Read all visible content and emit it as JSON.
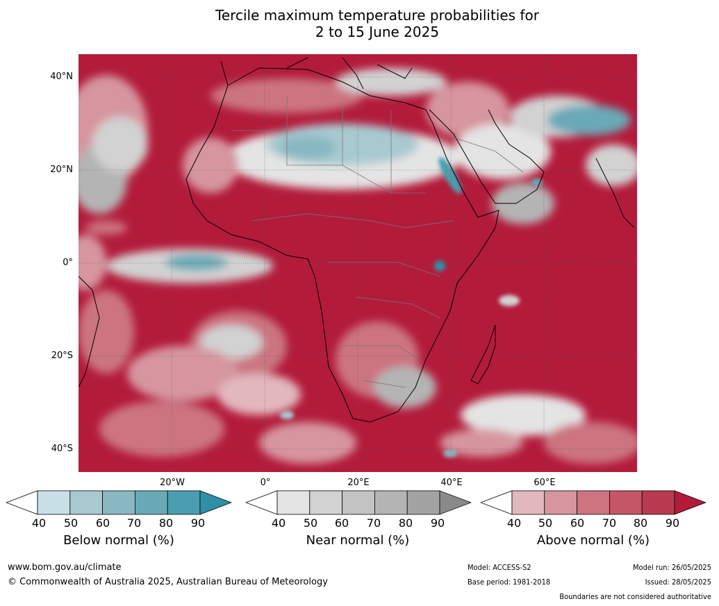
{
  "title": {
    "line1": "Tercile maximum temperature probabilities for",
    "line2": "2 to 15 June 2025"
  },
  "map": {
    "lat_labels": [
      "40°N",
      "20°N",
      "0°",
      "20°S",
      "40°S"
    ],
    "lon_labels": [
      "20°W",
      "0°",
      "20°E",
      "40°E",
      "60°E"
    ],
    "colors": {
      "below": [
        "#ffffff",
        "#c9e0e6",
        "#a8c9d0",
        "#89b8c2",
        "#6aa9b7",
        "#4a9eaf",
        "#2f8fa6"
      ],
      "near": [
        "#ffffff",
        "#e4e4e4",
        "#d2d2d2",
        "#c3c3c3",
        "#b4b4b4",
        "#a3a3a3",
        "#8a8a8a"
      ],
      "above": [
        "#ffffff",
        "#e2b7bd",
        "#d6959f",
        "#cc7581",
        "#c45668",
        "#b93a50",
        "#b31b3b"
      ]
    }
  },
  "colorbars": [
    {
      "label": "Below normal (%)",
      "ticks": [
        "40",
        "50",
        "60",
        "70",
        "80",
        "90"
      ]
    },
    {
      "label": "Near normal (%)",
      "ticks": [
        "40",
        "50",
        "60",
        "70",
        "80",
        "90"
      ]
    },
    {
      "label": "Above normal (%)",
      "ticks": [
        "40",
        "50",
        "60",
        "70",
        "80",
        "90"
      ]
    }
  ],
  "footer": {
    "website": "www.bom.gov.au/climate",
    "copyright": "© Commonwealth of Australia 2025, Australian Bureau of Meteorology",
    "model": "Model: ACCESS-S2",
    "base_period": "Base period: 1981-2018",
    "model_run": "Model run: 26/05/2025",
    "issued": "Issued: 28/05/2025",
    "disclaimer": "Boundaries are not considered authoritative"
  }
}
